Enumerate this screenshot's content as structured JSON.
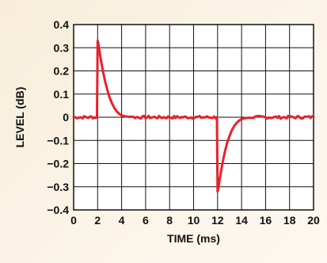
{
  "chart_data": {
    "type": "line",
    "xlabel": "TIME (ms)",
    "ylabel": "LEVEL (dB)",
    "xlim": [
      0,
      20
    ],
    "ylim": [
      -0.4,
      0.4
    ],
    "x_ticks": [
      "0",
      "2",
      "4",
      "6",
      "8",
      "10",
      "12",
      "14",
      "16",
      "18",
      "20"
    ],
    "y_ticks": [
      "0.4",
      "0.3",
      "0.2",
      "0.1",
      "0",
      "−0.1",
      "−0.2",
      "−0.3",
      "−0.4"
    ],
    "grid": true,
    "line_color": "#e8202a",
    "series": [
      {
        "x": [
          0,
          0.5,
          1,
          1.5,
          1.95,
          2.0,
          2.05,
          2.2,
          2.4,
          2.6,
          2.8,
          3.0,
          3.2,
          3.4,
          3.6,
          3.8,
          4.0,
          4.3,
          4.6,
          5.0,
          6,
          7,
          8,
          9,
          10,
          11,
          11.95,
          12.0,
          12.05,
          12.2,
          12.4,
          12.6,
          12.8,
          13.0,
          13.2,
          13.4,
          13.6,
          13.8,
          14.0,
          14.3,
          14.6,
          15.0,
          16,
          17,
          18,
          19,
          20
        ],
        "y": [
          0,
          0,
          0,
          0,
          0,
          0.33,
          0.32,
          0.27,
          0.21,
          0.16,
          0.12,
          0.085,
          0.06,
          0.04,
          0.025,
          0.015,
          0.008,
          0.004,
          0.002,
          0,
          0,
          0,
          0,
          0,
          0,
          0,
          0,
          -0.32,
          -0.31,
          -0.26,
          -0.2,
          -0.15,
          -0.11,
          -0.08,
          -0.055,
          -0.037,
          -0.024,
          -0.014,
          -0.008,
          -0.004,
          -0.002,
          0,
          0,
          0,
          0,
          0,
          0
        ]
      }
    ]
  }
}
